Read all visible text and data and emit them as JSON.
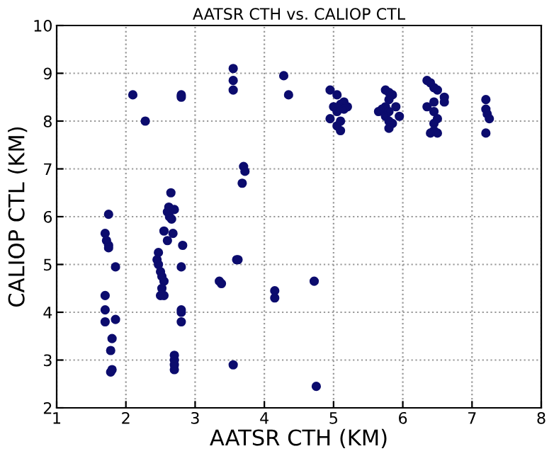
{
  "chart_data": {
    "type": "scatter",
    "title": "AATSR CTH vs. CALIOP CTL",
    "xlabel": "AATSR CTH (KM)",
    "ylabel": "CALIOP CTL (KM)",
    "xlim": [
      1,
      8
    ],
    "ylim": [
      2,
      10
    ],
    "xticks": [
      1,
      2,
      3,
      4,
      5,
      6,
      7,
      8
    ],
    "yticks": [
      2,
      3,
      4,
      5,
      6,
      7,
      8,
      9,
      10
    ],
    "grid": true,
    "marker": "circle",
    "series": [
      {
        "color": "#0c0c6e",
        "x": [
          1.75,
          1.7,
          1.72,
          1.75,
          1.75,
          1.85,
          1.7,
          1.7,
          1.7,
          1.85,
          1.8,
          1.78,
          1.8,
          1.78,
          2.1,
          2.28,
          2.62,
          2.65,
          2.6,
          2.63,
          2.7,
          2.66,
          2.55,
          2.6,
          2.68,
          2.82,
          2.47,
          2.45,
          2.47,
          2.5,
          2.52,
          2.55,
          2.52,
          2.55,
          2.5,
          2.7,
          2.7,
          2.7,
          2.7,
          2.8,
          2.8,
          2.8,
          2.8,
          2.8,
          2.8,
          3.35,
          3.38,
          3.55,
          3.55,
          3.55,
          3.55,
          3.7,
          3.72,
          3.68,
          3.62,
          3.6,
          4.28,
          4.35,
          4.15,
          4.15,
          4.72,
          4.75,
          4.95,
          5.05,
          5.1,
          5.0,
          5.15,
          5.2,
          5.05,
          5.15,
          4.95,
          5.05,
          5.1,
          5.1,
          5.75,
          5.8,
          5.85,
          5.8,
          5.75,
          5.7,
          5.8,
          5.9,
          5.95,
          5.75,
          5.8,
          5.85,
          5.8,
          5.65,
          6.35,
          6.4,
          6.45,
          6.5,
          6.45,
          6.6,
          6.6,
          6.35,
          6.45,
          6.5,
          6.45,
          6.45,
          6.4,
          6.5,
          7.2,
          7.2,
          7.22,
          7.25,
          7.2
        ],
        "values": [
          6.05,
          5.65,
          5.5,
          5.4,
          5.35,
          4.95,
          4.35,
          4.05,
          3.8,
          3.85,
          3.45,
          3.2,
          2.8,
          2.75,
          8.55,
          8.0,
          6.2,
          6.5,
          6.1,
          6.0,
          6.15,
          5.95,
          5.7,
          5.5,
          5.65,
          5.4,
          5.25,
          5.1,
          5.0,
          4.85,
          4.75,
          4.65,
          4.5,
          4.35,
          4.35,
          3.1,
          3.0,
          2.9,
          2.8,
          8.55,
          8.5,
          4.95,
          4.0,
          4.05,
          3.8,
          4.65,
          4.6,
          9.1,
          8.85,
          8.65,
          2.9,
          7.05,
          6.95,
          6.7,
          5.1,
          5.1,
          8.95,
          8.55,
          4.45,
          4.3,
          4.65,
          2.45,
          8.65,
          8.55,
          8.35,
          8.3,
          8.4,
          8.3,
          8.2,
          8.25,
          8.05,
          7.9,
          7.8,
          8.0,
          8.65,
          8.6,
          8.55,
          8.45,
          8.3,
          8.25,
          8.2,
          8.3,
          8.1,
          8.1,
          8.0,
          7.95,
          7.85,
          8.2,
          8.85,
          8.8,
          8.7,
          8.65,
          8.4,
          8.5,
          8.4,
          8.3,
          8.2,
          8.05,
          7.95,
          7.8,
          7.75,
          7.75,
          8.45,
          8.25,
          8.15,
          8.05,
          7.75
        ]
      }
    ]
  }
}
